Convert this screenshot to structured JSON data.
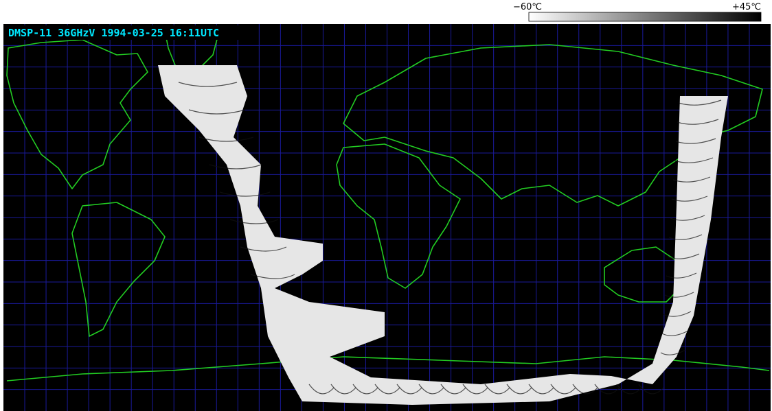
{
  "title": "DMSP-11 36GHzV 1994-03-25 16:11UTC",
  "colorbar": {
    "min_label": "−60℃",
    "max_label": "+45℃"
  }
}
